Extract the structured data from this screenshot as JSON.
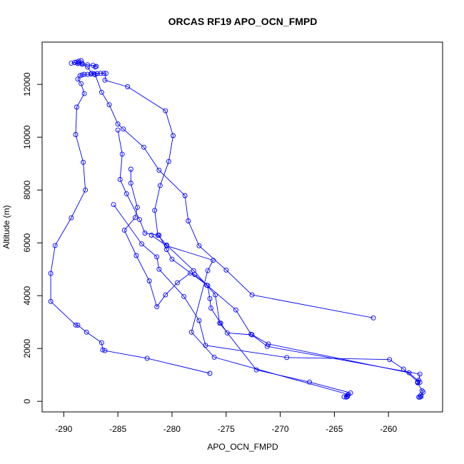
{
  "chart_data": {
    "type": "line",
    "title": "ORCAS RF19 APO_OCN_FMPD",
    "xlabel": "APO_OCN_FMPD",
    "ylabel": "Altitude (m)",
    "xlim": [
      -292,
      -255
    ],
    "ylim": [
      -400,
      13600
    ],
    "xticks": [
      -290,
      -285,
      -280,
      -275,
      -270,
      -265,
      -260
    ],
    "yticks": [
      0,
      2000,
      4000,
      6000,
      8000,
      10000,
      12000
    ],
    "grid": false,
    "legend": "none",
    "series": [
      {
        "color": "#0000ff",
        "marker": "open-circle",
        "points": [
          [
            -276.5,
            1060
          ],
          [
            -282.3,
            1630
          ],
          [
            -286.2,
            1920
          ],
          [
            -286.4,
            1950
          ],
          [
            -286.5,
            2220
          ],
          [
            -287.9,
            2620
          ],
          [
            -288.7,
            2880
          ],
          [
            -288.9,
            2890
          ],
          [
            -291.2,
            3780
          ],
          [
            -291.2,
            4840
          ],
          [
            -290.8,
            5900
          ],
          [
            -289.3,
            6950
          ],
          [
            -288.0,
            8000
          ],
          [
            -288.2,
            9050
          ],
          [
            -288.9,
            10100
          ],
          [
            -288.8,
            11140
          ],
          [
            -288.1,
            11650
          ],
          [
            -288.4,
            12030
          ],
          [
            -288.7,
            12200
          ],
          [
            -288.5,
            12330
          ],
          [
            -288.3,
            12360
          ],
          [
            -288.1,
            12380
          ],
          [
            -287.8,
            12380
          ],
          [
            -287.5,
            12390
          ],
          [
            -287.2,
            12400
          ],
          [
            -286.9,
            12410
          ],
          [
            -286.6,
            12420
          ],
          [
            -286.3,
            12420
          ],
          [
            -286.1,
            12420
          ],
          [
            -286.2,
            12160
          ],
          [
            -284.1,
            11910
          ],
          [
            -280.6,
            11000
          ],
          [
            -279.9,
            10060
          ],
          [
            -280.3,
            9080
          ],
          [
            -281.1,
            8170
          ],
          [
            -281.6,
            7230
          ],
          [
            -281.3,
            6290
          ],
          [
            -280.5,
            5920
          ],
          [
            -278.0,
            4950
          ],
          [
            -276.8,
            4400
          ],
          [
            -276.0,
            4030
          ],
          [
            -275.6,
            2960
          ],
          [
            -272.2,
            1190
          ],
          [
            -267.3,
            730
          ],
          [
            -263.5,
            320
          ],
          [
            -263.8,
            180
          ],
          [
            -264.1,
            170
          ],
          [
            -263.8,
            220
          ]
        ]
      },
      {
        "color": "#0000ff",
        "marker": "open-circle",
        "points": [
          [
            -261.4,
            3160
          ],
          [
            -272.6,
            4030
          ],
          [
            -275.0,
            4970
          ],
          [
            -277.5,
            5890
          ],
          [
            -278.5,
            6830
          ],
          [
            -278.8,
            7790
          ],
          [
            -281.2,
            8750
          ],
          [
            -282.6,
            9620
          ],
          [
            -284.5,
            10310
          ],
          [
            -285.0,
            10500
          ],
          [
            -285.8,
            11230
          ],
          [
            -286.5,
            11700
          ],
          [
            -287.1,
            12370
          ],
          [
            -287.4,
            12420
          ],
          [
            -287.8,
            12650
          ],
          [
            -288.3,
            12760
          ],
          [
            -288.7,
            12790
          ],
          [
            -288.8,
            12850
          ],
          [
            -288.6,
            12880
          ],
          [
            -288.4,
            12900
          ]
        ]
      },
      {
        "color": "#0000ff",
        "marker": "open-circle",
        "points": [
          [
            -287.1,
            12660
          ],
          [
            -287.0,
            12680
          ],
          [
            -287.3,
            12720
          ],
          [
            -287.8,
            12740
          ],
          [
            -288.3,
            12800
          ],
          [
            -288.6,
            12820
          ],
          [
            -289.0,
            12830
          ],
          [
            -289.3,
            12800
          ]
        ]
      },
      {
        "color": "#0000ff",
        "marker": "open-circle",
        "points": [
          [
            -285.0,
            10270
          ],
          [
            -284.6,
            9360
          ],
          [
            -284.8,
            8400
          ],
          [
            -284.2,
            7860
          ],
          [
            -283.0,
            6880
          ],
          [
            -282.5,
            6370
          ],
          [
            -281.2,
            6290
          ],
          [
            -280.5,
            5750
          ],
          [
            -280.0,
            5380
          ],
          [
            -276.7,
            4380
          ],
          [
            -276.5,
            3890
          ],
          [
            -276.4,
            3530
          ],
          [
            -275.5,
            2960
          ],
          [
            -274.9,
            2590
          ],
          [
            -272.6,
            2520
          ],
          [
            -271.1,
            2170
          ],
          [
            -258.1,
            1080
          ],
          [
            -257.1,
            720
          ],
          [
            -257.3,
            700
          ],
          [
            -256.9,
            400
          ],
          [
            -256.8,
            350
          ],
          [
            -257.0,
            240
          ],
          [
            -257.0,
            180
          ],
          [
            -257.1,
            160
          ],
          [
            -257.2,
            160
          ]
        ]
      },
      {
        "color": "#0000ff",
        "marker": "open-circle",
        "points": [
          [
            -283.8,
            8790
          ],
          [
            -283.8,
            8260
          ],
          [
            -283.2,
            7340
          ],
          [
            -283.4,
            6960
          ],
          [
            -284.4,
            6480
          ],
          [
            -283.3,
            5520
          ],
          [
            -282.1,
            4560
          ],
          [
            -281.4,
            3580
          ],
          [
            -280.6,
            4030
          ],
          [
            -279.5,
            4490
          ],
          [
            -278.3,
            4860
          ],
          [
            -277.9,
            4800
          ],
          [
            -274.1,
            3460
          ],
          [
            -272.7,
            2540
          ],
          [
            -271.2,
            2080
          ],
          [
            -257.1,
            1030
          ],
          [
            -257.2,
            800
          ],
          [
            -257.3,
            720
          ]
        ]
      },
      {
        "color": "#0000ff",
        "marker": "open-circle",
        "points": [
          [
            -285.4,
            7450
          ],
          [
            -282.8,
            5960
          ],
          [
            -281.4,
            5470
          ],
          [
            -281.2,
            5000
          ],
          [
            -278.9,
            3970
          ],
          [
            -277.5,
            3060
          ],
          [
            -276.9,
            2120
          ],
          [
            -269.4,
            1660
          ],
          [
            -259.9,
            1580
          ],
          [
            -258.6,
            1220
          ],
          [
            -257.3,
            740
          ]
        ]
      },
      {
        "color": "#0000ff",
        "marker": "open-circle",
        "points": [
          [
            -281.9,
            6290
          ],
          [
            -280.5,
            5890
          ],
          [
            -276.2,
            5340
          ],
          [
            -276.7,
            4950
          ],
          [
            -278.2,
            2620
          ],
          [
            -276.1,
            1670
          ],
          [
            -263.7,
            260
          ],
          [
            -263.9,
            160
          ]
        ]
      }
    ]
  }
}
